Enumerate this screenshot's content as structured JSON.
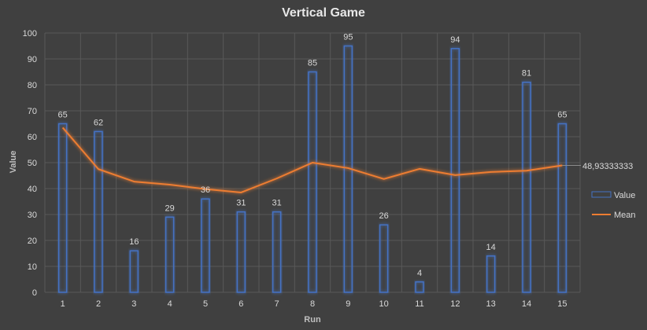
{
  "chart_data": {
    "type": "bar",
    "title": "Vertical Game",
    "xlabel": "Run",
    "ylabel": "Value",
    "ylim": [
      0,
      100
    ],
    "yticks": [
      0,
      10,
      20,
      30,
      40,
      50,
      60,
      70,
      80,
      90,
      100
    ],
    "categories": [
      "1",
      "2",
      "3",
      "4",
      "5",
      "6",
      "7",
      "8",
      "9",
      "10",
      "11",
      "12",
      "13",
      "14",
      "15"
    ],
    "grid": true,
    "legend_position": "right",
    "series": [
      {
        "name": "Value",
        "kind": "bar",
        "color": "#4472c4",
        "values": [
          65,
          62,
          16,
          29,
          36,
          31,
          31,
          85,
          95,
          26,
          4,
          94,
          14,
          81,
          65
        ]
      },
      {
        "name": "Mean",
        "kind": "line",
        "color": "#ed7d31",
        "values": [
          63.5,
          47.5,
          42.7,
          41.5,
          39.8,
          38.5,
          43.9,
          50.0,
          47.9,
          43.7,
          47.6,
          45.2,
          46.4,
          46.9,
          48.9333
        ]
      }
    ],
    "end_label": "48,93333333"
  },
  "colors": {
    "background": "#404040",
    "grid": "#595959",
    "bar": "#4472c4",
    "line": "#ed7d31"
  }
}
